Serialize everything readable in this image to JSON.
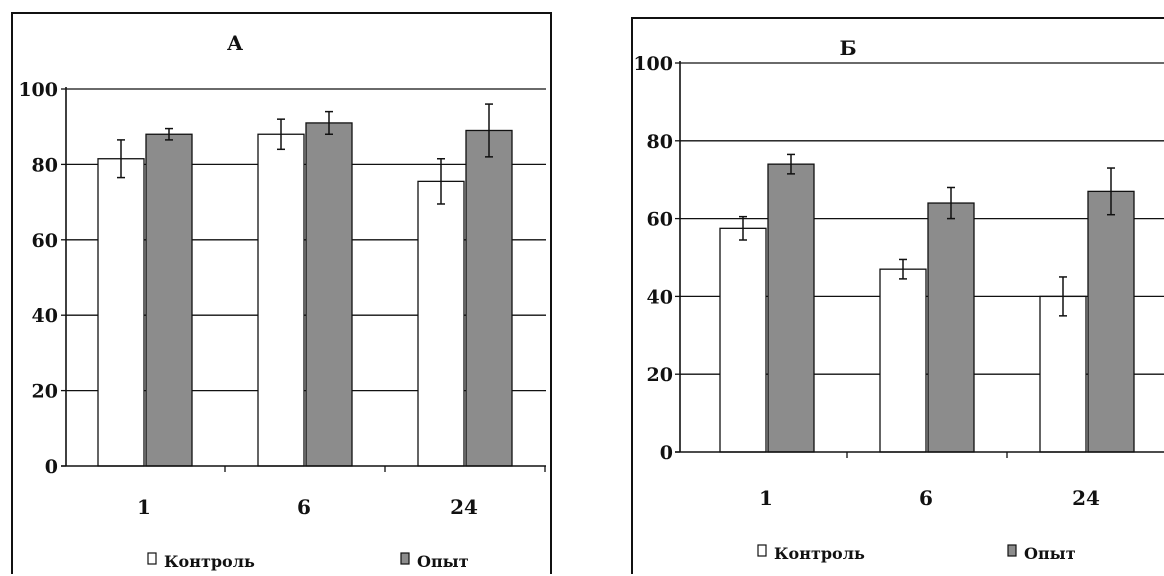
{
  "colors": {
    "control": "#ffffff",
    "experiment": "#8c8c8c",
    "stroke": "#111111",
    "page": "#ffffff"
  },
  "chart_data": [
    {
      "type": "bar",
      "title": "А",
      "categories": [
        "1",
        "6",
        "24"
      ],
      "ylim": [
        0,
        100
      ],
      "yticks": [
        "0",
        "20",
        "40",
        "60",
        "80",
        "100"
      ],
      "grid": true,
      "legend_position": "bottom",
      "series": [
        {
          "name": "Контроль",
          "values": [
            81.5,
            88,
            75.5
          ],
          "errors": [
            5,
            4,
            6
          ]
        },
        {
          "name": "Опыт",
          "values": [
            88,
            91,
            89
          ],
          "errors": [
            1.5,
            3,
            7
          ]
        }
      ]
    },
    {
      "type": "bar",
      "title": "Б",
      "categories": [
        "1",
        "6",
        "24"
      ],
      "ylim": [
        0,
        100
      ],
      "yticks": [
        "0",
        "20",
        "40",
        "60",
        "80",
        "100"
      ],
      "grid": true,
      "legend_position": "bottom",
      "series": [
        {
          "name": "Контроль",
          "values": [
            57.5,
            47,
            40
          ],
          "errors": [
            3,
            2.5,
            5
          ]
        },
        {
          "name": "Опыт",
          "values": [
            74,
            64,
            67
          ],
          "errors": [
            2.5,
            4,
            6
          ]
        }
      ]
    }
  ]
}
